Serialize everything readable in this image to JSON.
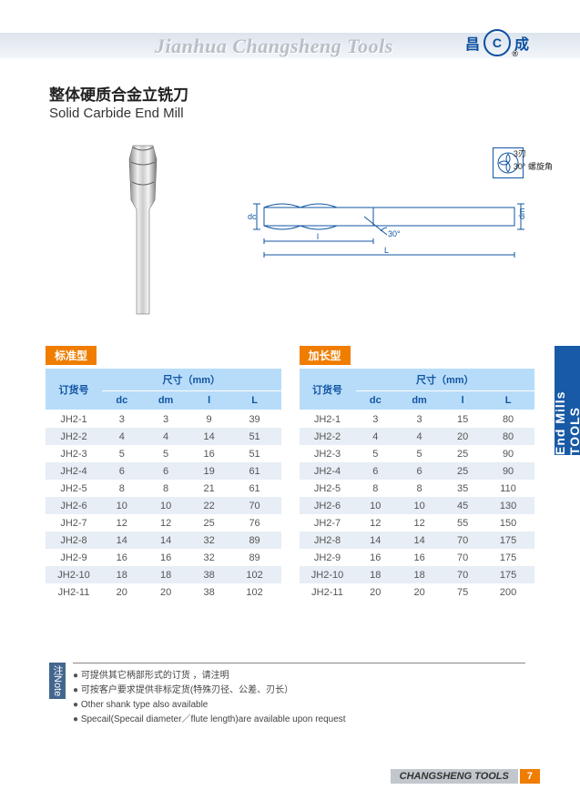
{
  "header": {
    "brand_title": "Jianhua Changsheng Tools",
    "logo_char_left": "昌",
    "logo_char_right": "成",
    "logo_center": "C"
  },
  "product": {
    "title_cn": "整体硬质合金立铣刀",
    "title_en": "Solid Carbide End Mill"
  },
  "schematic": {
    "flutes_label": "3刃",
    "helix_label": "30° 螺旋角",
    "angle_label": "30°",
    "dim_dc": "dc",
    "dim_dm": "dm",
    "dim_l": "l",
    "dim_L": "L"
  },
  "table_headers": {
    "order": "订货号",
    "size_group": "尺寸（mm）",
    "dc": "dc",
    "dm": "dm",
    "l": "l",
    "L": "L"
  },
  "standard_table": {
    "badge": "标准型",
    "rows": [
      {
        "id": "JH2-1",
        "dc": "3",
        "dm": "3",
        "l": "9",
        "L": "39"
      },
      {
        "id": "JH2-2",
        "dc": "4",
        "dm": "4",
        "l": "14",
        "L": "51"
      },
      {
        "id": "JH2-3",
        "dc": "5",
        "dm": "5",
        "l": "16",
        "L": "51"
      },
      {
        "id": "JH2-4",
        "dc": "6",
        "dm": "6",
        "l": "19",
        "L": "61"
      },
      {
        "id": "JH2-5",
        "dc": "8",
        "dm": "8",
        "l": "21",
        "L": "61"
      },
      {
        "id": "JH2-6",
        "dc": "10",
        "dm": "10",
        "l": "22",
        "L": "70"
      },
      {
        "id": "JH2-7",
        "dc": "12",
        "dm": "12",
        "l": "25",
        "L": "76"
      },
      {
        "id": "JH2-8",
        "dc": "14",
        "dm": "14",
        "l": "32",
        "L": "89"
      },
      {
        "id": "JH2-9",
        "dc": "16",
        "dm": "16",
        "l": "32",
        "L": "89"
      },
      {
        "id": "JH2-10",
        "dc": "18",
        "dm": "18",
        "l": "38",
        "L": "102"
      },
      {
        "id": "JH2-11",
        "dc": "20",
        "dm": "20",
        "l": "38",
        "L": "102"
      }
    ]
  },
  "long_table": {
    "badge": "加长型",
    "rows": [
      {
        "id": "JH2-1",
        "dc": "3",
        "dm": "3",
        "l": "15",
        "L": "80"
      },
      {
        "id": "JH2-2",
        "dc": "4",
        "dm": "4",
        "l": "20",
        "L": "80"
      },
      {
        "id": "JH2-3",
        "dc": "5",
        "dm": "5",
        "l": "25",
        "L": "90"
      },
      {
        "id": "JH2-4",
        "dc": "6",
        "dm": "6",
        "l": "25",
        "L": "90"
      },
      {
        "id": "JH2-5",
        "dc": "8",
        "dm": "8",
        "l": "35",
        "L": "110"
      },
      {
        "id": "JH2-6",
        "dc": "10",
        "dm": "10",
        "l": "45",
        "L": "130"
      },
      {
        "id": "JH2-7",
        "dc": "12",
        "dm": "12",
        "l": "55",
        "L": "150"
      },
      {
        "id": "JH2-8",
        "dc": "14",
        "dm": "14",
        "l": "70",
        "L": "175"
      },
      {
        "id": "JH2-9",
        "dc": "16",
        "dm": "16",
        "l": "70",
        "L": "175"
      },
      {
        "id": "JH2-10",
        "dc": "18",
        "dm": "18",
        "l": "70",
        "L": "175"
      },
      {
        "id": "JH2-11",
        "dc": "20",
        "dm": "20",
        "l": "75",
        "L": "200"
      }
    ]
  },
  "side_tab": "End Mills TOOLS",
  "notes": {
    "badge_cn": "注",
    "badge_en": "Note",
    "items": [
      "可提供其它柄部形式的订货 ，请注明",
      "可按客户要求提供非标定货(特殊刃径、公差、刃长）",
      "Other shank type also available",
      "Specail(Specail diameter／flute length)are available upon request"
    ]
  },
  "footer": {
    "brand": "CHANGSHENG TOOLS",
    "page": "7"
  },
  "colors": {
    "orange": "#f07d00",
    "blue_header": "#b7dcf9",
    "blue_text": "#1255a3",
    "row_stripe": "#e7eef5",
    "side_tab": "#195aa6",
    "note_badge": "#42668f"
  }
}
